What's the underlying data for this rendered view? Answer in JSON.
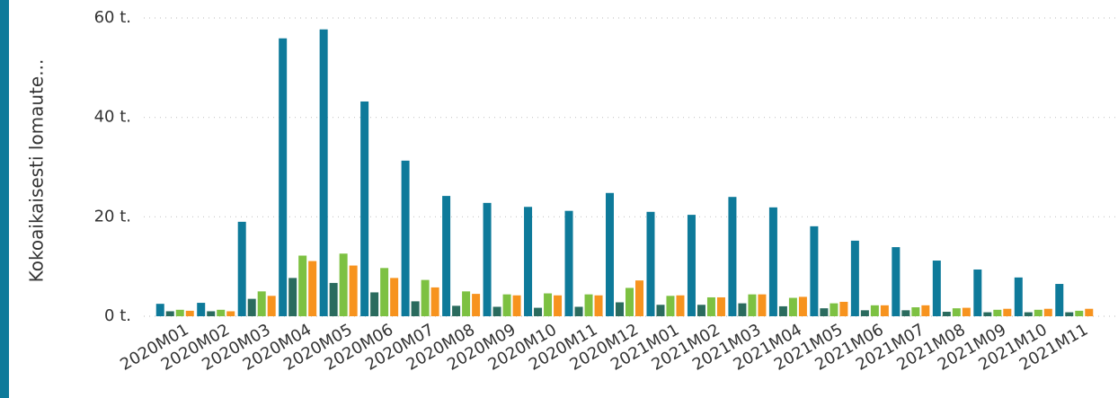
{
  "chart_data": {
    "type": "bar",
    "y_label": "Kokoaikaisesti lomaute...",
    "categories": [
      "2020M01",
      "2020M02",
      "2020M03",
      "2020M04",
      "2020M05",
      "2020M06",
      "2020M07",
      "2020M08",
      "2020M09",
      "2020M10",
      "2020M11",
      "2020M12",
      "2021M01",
      "2021M02",
      "2021M03",
      "2021M04",
      "2021M05",
      "2021M06",
      "2021M07",
      "2021M08",
      "2021M09",
      "2021M10",
      "2021M11"
    ],
    "series": [
      {
        "color": "#0e7a9a",
        "values": [
          2.5,
          2.7,
          19,
          55.9,
          57.7,
          43.2,
          31.3,
          24.2,
          22.8,
          22,
          21.2,
          24.8,
          21,
          20.4,
          24,
          21.9,
          18.1,
          15.2,
          13.9,
          11.2,
          9.4,
          7.8,
          6.5
        ]
      },
      {
        "color": "#2a6b5e",
        "values": [
          1,
          1,
          3.5,
          7.7,
          6.7,
          4.8,
          3,
          2.1,
          1.9,
          1.7,
          1.9,
          2.8,
          2.3,
          2.3,
          2.6,
          2,
          1.6,
          1.2,
          1.2,
          0.9,
          0.8,
          0.8,
          0.8
        ]
      },
      {
        "color": "#7dc142",
        "values": [
          1.3,
          1.3,
          5,
          12.2,
          12.6,
          9.7,
          7.3,
          5,
          4.4,
          4.6,
          4.4,
          5.7,
          4.1,
          3.8,
          4.4,
          3.7,
          2.6,
          2.2,
          1.8,
          1.6,
          1.3,
          1.3,
          1.1
        ]
      },
      {
        "color": "#f7931e",
        "values": [
          1.1,
          1,
          4.1,
          11.1,
          10.2,
          7.7,
          5.8,
          4.5,
          4.2,
          4.2,
          4.2,
          7.2,
          4.2,
          3.8,
          4.4,
          3.9,
          2.9,
          2.2,
          2.2,
          1.7,
          1.5,
          1.5,
          1.5
        ]
      }
    ],
    "ylim": [
      0,
      60
    ],
    "yticks": [
      {
        "value": 0,
        "label": "0 t."
      },
      {
        "value": 20,
        "label": "20 t."
      },
      {
        "value": 40,
        "label": "40 t."
      },
      {
        "value": 60,
        "label": "60 t."
      }
    ],
    "grid": true
  }
}
